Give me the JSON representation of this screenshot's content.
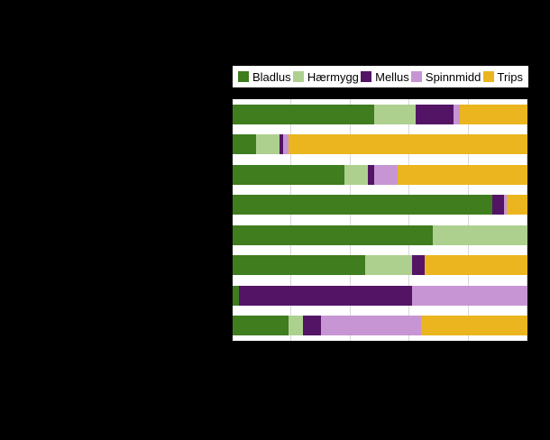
{
  "background_color": "#000000",
  "plot_background_color": "#ffffff",
  "gridline_color": "#d9d9d9",
  "legend": {
    "items": [
      {
        "label": "Bladlus",
        "color": "#3f7d1f"
      },
      {
        "label": "Hærmygg",
        "color": "#aed08f"
      },
      {
        "label": "Mellus",
        "color": "#541466"
      },
      {
        "label": "Spinnmidd",
        "color": "#c795d3"
      },
      {
        "label": "Trips",
        "color": "#eab51e"
      }
    ]
  },
  "chart_data": {
    "type": "bar",
    "orientation": "horizontal",
    "stacked": true,
    "unit": "percent",
    "xlim": [
      0,
      100
    ],
    "gridlines": [
      20,
      40,
      60,
      80,
      100
    ],
    "legend_position": "top",
    "categories": [
      "",
      "",
      "",
      "",
      "",
      "",
      "",
      ""
    ],
    "series": [
      {
        "name": "Bladlus",
        "color": "#3f7d1f",
        "values": [
          48,
          8,
          38,
          88,
          68,
          45,
          2,
          19
        ]
      },
      {
        "name": "Hærmygg",
        "color": "#aed08f",
        "values": [
          14,
          8,
          8,
          0,
          32,
          16,
          0,
          5
        ]
      },
      {
        "name": "Mellus",
        "color": "#541466",
        "values": [
          13,
          1,
          2,
          4,
          0,
          4,
          59,
          6
        ]
      },
      {
        "name": "Spinnmidd",
        "color": "#c795d3",
        "values": [
          2,
          2,
          8,
          1,
          0,
          0,
          39,
          34
        ]
      },
      {
        "name": "Trips",
        "color": "#eab51e",
        "values": [
          23,
          81,
          44,
          7,
          0,
          35,
          0,
          36
        ]
      }
    ]
  }
}
